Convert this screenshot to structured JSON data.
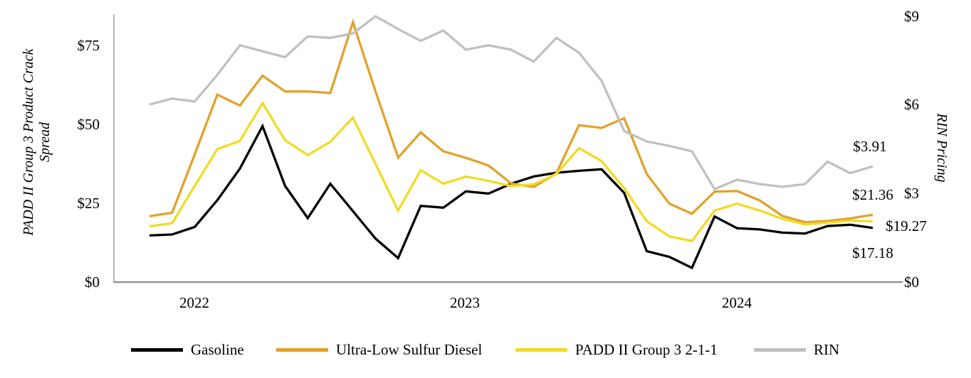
{
  "chart_data": {
    "type": "line",
    "title": "",
    "x_unit": "month",
    "x_start": "Nov 2021",
    "x_end": "Jul 2024",
    "grid": "off",
    "legend_position": "bottom",
    "year_ticks": [
      {
        "label": "2022",
        "month_index": 2
      },
      {
        "label": "2023",
        "month_index": 14
      },
      {
        "label": "2024",
        "month_index": 26
      }
    ],
    "left_axis": {
      "title": "PADD II Group 3 Product Crack Spread",
      "title_lines": [
        "PADD II Group 3 Product Crack",
        "Spread"
      ],
      "ticks": [
        "$75",
        "$50",
        "$25",
        "$0"
      ],
      "tick_values": [
        75,
        50,
        25,
        0
      ],
      "range": [
        0,
        85
      ]
    },
    "right_axis": {
      "title": "RIN Pricing",
      "ticks": [
        "$9",
        "$6",
        "$3",
        "$0"
      ],
      "tick_values": [
        9,
        6,
        3,
        0
      ],
      "range": [
        0,
        9.05
      ]
    },
    "series": [
      {
        "name": "Gasoline",
        "axis": "left",
        "color": "#000000",
        "values": [
          14.8,
          15.1,
          17.5,
          26,
          36,
          49.5,
          30.5,
          20.3,
          31.2,
          22.5,
          13.8,
          7.6,
          24.2,
          23.6,
          28.8,
          28.1,
          31.2,
          33.5,
          34.7,
          35.3,
          35.8,
          28.3,
          9.8,
          8,
          4.5,
          20.8,
          17.1,
          16.7,
          15.7,
          15.4,
          17.8,
          18.2,
          17.18
        ]
      },
      {
        "name": "Ultra-Low Sulfur Diesel",
        "axis": "left",
        "color": "#E1A22C",
        "values": [
          20.9,
          22,
          40.5,
          59.5,
          56,
          65.5,
          60.5,
          60.5,
          60,
          82.5,
          60.5,
          39.5,
          47.5,
          41.5,
          39.4,
          37,
          31.3,
          30.2,
          34.5,
          49.8,
          48.9,
          52,
          34.3,
          24.9,
          21.7,
          28.7,
          28.9,
          25.9,
          21,
          19,
          19.4,
          20.2,
          21.36
        ]
      },
      {
        "name": "PADD II Group 3 2-1-1",
        "axis": "left",
        "color": "#F1DB25",
        "values": [
          17.7,
          18.7,
          30.5,
          42.2,
          44.8,
          56.8,
          45,
          40.3,
          44.5,
          52.2,
          37.5,
          22.7,
          35.5,
          31.2,
          33.5,
          32.1,
          30.5,
          31,
          34.3,
          42.5,
          38.4,
          29.8,
          19.3,
          14.5,
          13,
          22.7,
          24.9,
          22.7,
          20.1,
          18.3,
          18.9,
          19.5,
          19.27
        ]
      },
      {
        "name": "RIN",
        "axis": "right",
        "color": "#C0C0C0",
        "values": [
          6,
          6.2,
          6.1,
          7,
          8,
          7.8,
          7.6,
          8.3,
          8.25,
          8.4,
          8.98,
          8.55,
          8.15,
          8.5,
          7.85,
          8,
          7.85,
          7.45,
          8.25,
          7.75,
          6.8,
          5.1,
          4.75,
          4.6,
          4.42,
          3.14,
          3.46,
          3.31,
          3.22,
          3.31,
          4.07,
          3.68,
          3.91
        ]
      }
    ],
    "end_labels": [
      {
        "text": "$3.91",
        "series": "RIN"
      },
      {
        "text": "$21.36",
        "series": "Ultra-Low Sulfur Diesel"
      },
      {
        "text": "$19.27",
        "series": "PADD II Group 3 2-1-1"
      },
      {
        "text": "$17.18",
        "series": "Gasoline"
      }
    ]
  },
  "legend": {
    "items": [
      {
        "label": "Gasoline",
        "color": "#000000"
      },
      {
        "label": "Ultra-Low Sulfur Diesel",
        "color": "#E1A22C"
      },
      {
        "label": "PADD II Group 3 2-1-1",
        "color": "#F1DB25"
      },
      {
        "label": "RIN",
        "color": "#C0C0C0"
      }
    ]
  }
}
